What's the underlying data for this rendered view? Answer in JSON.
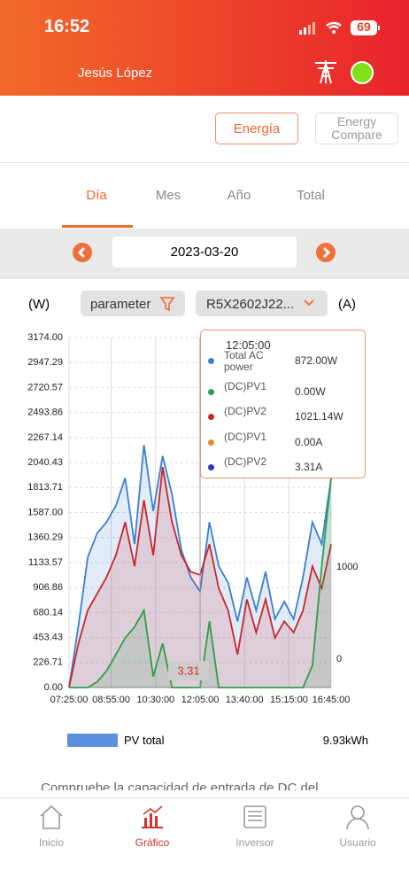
{
  "status_bar": {
    "time": "16:52",
    "battery": "69"
  },
  "header": {
    "user": "Jesús López"
  },
  "buttons": [
    "Energía",
    "Energy Compare"
  ],
  "tabs": [
    "Día",
    "Mes",
    "Año",
    "Total"
  ],
  "date": "2023-03-20",
  "filters": {
    "left_unit": "(W)",
    "parameter": "parameter",
    "device": "R5X2602J22...",
    "right_unit": "(A)"
  },
  "chart_data": {
    "type": "area",
    "x": [
      "07:25:00",
      "07:45:00",
      "08:05:00",
      "08:25:00",
      "08:45:00",
      "09:05:00",
      "09:25:00",
      "09:45:00",
      "10:05:00",
      "10:25:00",
      "10:45:00",
      "11:05:00",
      "11:25:00",
      "11:45:00",
      "12:05:00",
      "12:25:00",
      "12:45:00",
      "13:05:00",
      "13:25:00",
      "13:45:00",
      "14:05:00",
      "14:25:00",
      "14:45:00",
      "15:05:00",
      "15:25:00",
      "15:45:00",
      "16:05:00",
      "16:25:00",
      "16:45:00"
    ],
    "xlim": [
      "07:25:00",
      "16:45:00"
    ],
    "xticks": [
      "07:25:00",
      "08:55:00",
      "10:30:00",
      "12:05:00",
      "13:40:00",
      "15:15:00",
      "16:45:00"
    ],
    "ylim": [
      0,
      3174
    ],
    "yticks": [
      {
        "value": 0,
        "label": "0.00"
      },
      {
        "value": 226.71,
        "label": "226.71"
      },
      {
        "value": 453.43,
        "label": "453.43"
      },
      {
        "value": 680.14,
        "label": "680.14"
      },
      {
        "value": 906.86,
        "label": "906.86"
      },
      {
        "value": 1133.57,
        "label": "1133.57"
      },
      {
        "value": 1360.29,
        "label": "1360.29"
      },
      {
        "value": 1587,
        "label": "1587.00"
      },
      {
        "value": 1813.71,
        "label": "1813.71"
      },
      {
        "value": 2040.43,
        "label": "2040.43"
      },
      {
        "value": 2267.14,
        "label": "2267.14"
      },
      {
        "value": 2493.86,
        "label": "2493.86"
      },
      {
        "value": 2720.57,
        "label": "2720.57"
      },
      {
        "value": 2947.29,
        "label": "2947.29"
      },
      {
        "value": 3174,
        "label": "3174.00"
      }
    ],
    "y2lim": [
      -308,
      3490
    ],
    "y2ticks": [
      0,
      1000
    ],
    "grid": true,
    "series": [
      {
        "name": "Total AC power",
        "color": "#3a7fd0",
        "values": [
          0,
          560,
          1180,
          1400,
          1500,
          1650,
          1900,
          1300,
          2200,
          1600,
          2100,
          1750,
          1250,
          1000,
          872,
          1500,
          1100,
          950,
          600,
          1000,
          700,
          1050,
          620,
          780,
          620,
          1000,
          1500,
          1300,
          1900
        ]
      },
      {
        "name": "(DC)PV2",
        "color": "#c8262c",
        "values": [
          0,
          400,
          700,
          850,
          1000,
          1200,
          1500,
          1100,
          1700,
          1200,
          2000,
          1500,
          1200,
          1050,
          1021.14,
          1300,
          900,
          700,
          300,
          800,
          500,
          800,
          450,
          600,
          500,
          700,
          1100,
          900,
          1300
        ]
      },
      {
        "name": "(DC)PV1",
        "color": "#2e9e4a",
        "values": [
          0,
          0,
          0,
          50,
          150,
          300,
          450,
          550,
          700,
          100,
          400,
          0,
          0,
          0,
          0,
          600,
          0,
          0,
          0,
          0,
          0,
          0,
          0,
          0,
          0,
          0,
          200,
          1100,
          1900
        ]
      }
    ],
    "pointer_label": "3.31"
  },
  "tooltip": {
    "time": "12:05:00",
    "items": [
      {
        "label": "Total AC power",
        "value": "872.00W",
        "color": "#3a7fd0"
      },
      {
        "label": "(DC)PV1",
        "value": "0.00W",
        "color": "#2e9e4a"
      },
      {
        "label": "(DC)PV2",
        "value": "1021.14W",
        "color": "#c8262c"
      },
      {
        "label": "(DC)PV1",
        "value": "0.00A",
        "color": "#f08a24"
      },
      {
        "label": "(DC)PV2",
        "value": "3.31A",
        "color": "#3434d0"
      }
    ]
  },
  "legend": {
    "name": "PV total",
    "total": "9.93kWh"
  },
  "note": "Compruebe la capacidad de entrada de DC del",
  "nav": [
    "Inicio",
    "Gráfico",
    "Inversor",
    "Usuario"
  ]
}
